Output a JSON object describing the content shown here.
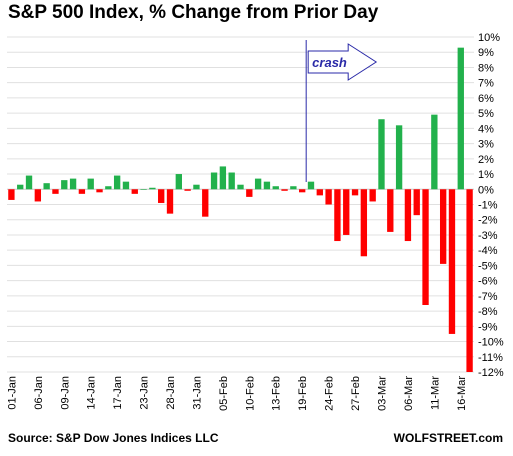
{
  "chart_data": {
    "type": "bar",
    "title": "S&P 500 Index, % Change from Prior Day",
    "source": "Source: S&P Dow Jones Indices LLC",
    "brand": "WOLFSTREET.com",
    "annotation": "crash",
    "annotation_at_label": "19-Feb",
    "ylim": [
      -12,
      10
    ],
    "yticks": [
      10,
      9,
      8,
      7,
      6,
      5,
      4,
      3,
      2,
      1,
      0,
      -1,
      -2,
      -3,
      -4,
      -5,
      -6,
      -7,
      -8,
      -9,
      -10,
      -11,
      -12
    ],
    "ytick_labels": [
      "10%",
      "9%",
      "8%",
      "7%",
      "6%",
      "5%",
      "4%",
      "3%",
      "2%",
      "1%",
      "0%",
      "-1%",
      "-2%",
      "-3%",
      "-4%",
      "-5%",
      "-6%",
      "-7%",
      "-8%",
      "-9%",
      "-10%",
      "-11%",
      "-12%"
    ],
    "xtick_labels": [
      "01-Jan",
      "06-Jan",
      "09-Jan",
      "14-Jan",
      "17-Jan",
      "23-Jan",
      "28-Jan",
      "31-Jan",
      "05-Feb",
      "10-Feb",
      "13-Feb",
      "19-Feb",
      "24-Feb",
      "27-Feb",
      "03-Mar",
      "06-Mar",
      "11-Mar",
      "16-Mar"
    ],
    "xtick_every": 3,
    "colors": {
      "positive": "#22b14c",
      "negative": "#ff0000",
      "annotation": "#2a2aa8"
    },
    "values": [
      -0.7,
      0.3,
      0.9,
      -0.8,
      0.4,
      -0.3,
      0.6,
      0.7,
      -0.3,
      0.7,
      -0.2,
      0.2,
      0.9,
      0.5,
      -0.3,
      0.0,
      0.1,
      -0.9,
      -1.6,
      1.0,
      -0.1,
      0.3,
      -1.8,
      1.1,
      1.5,
      1.1,
      0.3,
      -0.5,
      0.7,
      0.5,
      0.2,
      -0.1,
      0.2,
      -0.2,
      0.5,
      -0.4,
      -1.0,
      -3.4,
      -3.0,
      -0.4,
      -4.4,
      -0.8,
      4.6,
      -2.8,
      4.2,
      -3.4,
      -1.7,
      -7.6,
      4.9,
      -4.9,
      -9.5,
      9.3,
      -12.0
    ]
  }
}
